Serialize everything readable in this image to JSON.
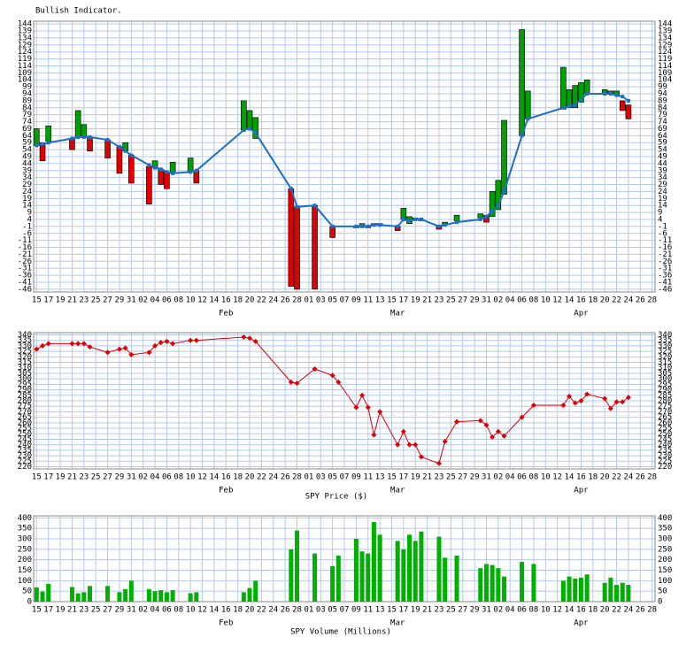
{
  "chart_data": [
    {
      "type": "indicator",
      "title": "Bullish Indicator.",
      "xlim": [
        -0.5,
        104.5
      ],
      "ylim": [
        -48,
        146
      ],
      "xticks": [
        {
          "value": 0,
          "label": "15"
        },
        {
          "value": 2,
          "label": "17"
        },
        {
          "value": 4,
          "label": "19"
        },
        {
          "value": 6,
          "label": "21"
        },
        {
          "value": 8,
          "label": "23"
        },
        {
          "value": 10,
          "label": "25"
        },
        {
          "value": 12,
          "label": "27"
        },
        {
          "value": 14,
          "label": "29"
        },
        {
          "value": 16,
          "label": "31"
        },
        {
          "value": 18,
          "label": "02"
        },
        {
          "value": 20,
          "label": "04"
        },
        {
          "value": 22,
          "label": "06"
        },
        {
          "value": 24,
          "label": "08"
        },
        {
          "value": 26,
          "label": "10"
        },
        {
          "value": 28,
          "label": "12"
        },
        {
          "value": 30,
          "label": "14"
        },
        {
          "value": 32,
          "label": "16"
        },
        {
          "value": 34,
          "label": "18"
        },
        {
          "value": 36,
          "label": "20"
        },
        {
          "value": 38,
          "label": "22"
        },
        {
          "value": 40,
          "label": "24"
        },
        {
          "value": 42,
          "label": "26"
        },
        {
          "value": 44,
          "label": "28"
        },
        {
          "value": 46,
          "label": "01"
        },
        {
          "value": 48,
          "label": "03"
        },
        {
          "value": 50,
          "label": "05"
        },
        {
          "value": 52,
          "label": "07"
        },
        {
          "value": 54,
          "label": "09"
        },
        {
          "value": 56,
          "label": "11"
        },
        {
          "value": 58,
          "label": "13"
        },
        {
          "value": 60,
          "label": "15"
        },
        {
          "value": 62,
          "label": "17"
        },
        {
          "value": 64,
          "label": "19"
        },
        {
          "value": 66,
          "label": "21"
        },
        {
          "value": 68,
          "label": "23"
        },
        {
          "value": 70,
          "label": "25"
        },
        {
          "value": 72,
          "label": "27"
        },
        {
          "value": 74,
          "label": "29"
        },
        {
          "value": 76,
          "label": "31"
        },
        {
          "value": 78,
          "label": "02"
        },
        {
          "value": 80,
          "label": "04"
        },
        {
          "value": 82,
          "label": "06"
        },
        {
          "value": 84,
          "label": "08"
        },
        {
          "value": 86,
          "label": "10"
        },
        {
          "value": 88,
          "label": "12"
        },
        {
          "value": 90,
          "label": "14"
        },
        {
          "value": 92,
          "label": "16"
        },
        {
          "value": 94,
          "label": "18"
        },
        {
          "value": 96,
          "label": "20"
        },
        {
          "value": 98,
          "label": "22"
        },
        {
          "value": 100,
          "label": "24"
        },
        {
          "value": 102,
          "label": "26"
        },
        {
          "value": 104,
          "label": "28"
        }
      ],
      "month_labels": [
        {
          "value": 32,
          "label": "Feb"
        },
        {
          "value": 61,
          "label": "Mar"
        },
        {
          "value": 92,
          "label": "Apr"
        }
      ],
      "yticks": [
        -46,
        -41,
        -36,
        -31,
        -26,
        -21,
        -16,
        -11,
        -6,
        -1,
        4,
        9,
        14,
        19,
        24,
        29,
        34,
        39,
        44,
        49,
        54,
        59,
        64,
        69,
        74,
        79,
        84,
        89,
        94,
        99,
        104,
        109,
        114,
        119,
        124,
        129,
        134,
        139,
        144
      ],
      "grid": true,
      "up_color": "#00a000",
      "down_color": "#e00000",
      "line_color": "#1f6fc6",
      "x": [
        0,
        1,
        2,
        6,
        7,
        8,
        9,
        12,
        14,
        15,
        16,
        19,
        20,
        21,
        22,
        23,
        26,
        27,
        35,
        36,
        37,
        43,
        44,
        47,
        50,
        54,
        55,
        56,
        57,
        58,
        61,
        62,
        63,
        64,
        65,
        68,
        69,
        71,
        75,
        76,
        77,
        78,
        79,
        82,
        83,
        89,
        90,
        91,
        92,
        93,
        96,
        97,
        98,
        99,
        100
      ],
      "start": [
        57,
        59,
        60,
        62,
        63,
        63,
        63,
        61,
        56,
        53,
        50,
        42,
        41,
        40,
        38,
        37,
        38,
        39,
        68,
        69,
        62,
        26,
        13,
        14,
        -1,
        -1,
        -1,
        -1,
        0,
        0,
        -1,
        4,
        1,
        4,
        4,
        0,
        0,
        3,
        5,
        7,
        6,
        11,
        22,
        64,
        76,
        83,
        84,
        84,
        88,
        94,
        94,
        94,
        93,
        89,
        86
      ],
      "end": [
        69,
        46,
        71,
        54,
        82,
        72,
        53,
        48,
        37,
        59,
        30,
        15,
        46,
        29,
        26,
        45,
        48,
        30,
        89,
        82,
        77,
        -44,
        -46,
        -46,
        -9,
        -2,
        1,
        -2,
        1,
        1,
        -4,
        12,
        6,
        5,
        3,
        -3,
        2,
        7,
        8,
        2,
        24,
        32,
        75,
        140,
        96,
        113,
        97,
        100,
        102,
        104,
        97,
        96,
        96,
        82,
        76
      ],
      "line_values": [
        57,
        58,
        59,
        62,
        63,
        63,
        63,
        61,
        56,
        53,
        50,
        43,
        41,
        40,
        38,
        37,
        38,
        39,
        68,
        69,
        66,
        26,
        13,
        14,
        -1,
        -1,
        -1,
        -1,
        0,
        0,
        -1,
        4,
        3,
        4,
        4,
        -1,
        0,
        2,
        4,
        6,
        10,
        14,
        24,
        64,
        76,
        84,
        85,
        86,
        90,
        94,
        94,
        94,
        93,
        92,
        89
      ]
    },
    {
      "type": "line",
      "title": "SPY Price ($)",
      "xlim": [
        -0.5,
        104.5
      ],
      "ylim": [
        218,
        342
      ],
      "xticks": [
        {
          "value": 0,
          "label": "15"
        },
        {
          "value": 2,
          "label": "17"
        },
        {
          "value": 4,
          "label": "19"
        },
        {
          "value": 6,
          "label": "21"
        },
        {
          "value": 8,
          "label": "23"
        },
        {
          "value": 10,
          "label": "25"
        },
        {
          "value": 12,
          "label": "27"
        },
        {
          "value": 14,
          "label": "29"
        },
        {
          "value": 16,
          "label": "31"
        },
        {
          "value": 18,
          "label": "02"
        },
        {
          "value": 20,
          "label": "04"
        },
        {
          "value": 22,
          "label": "06"
        },
        {
          "value": 24,
          "label": "08"
        },
        {
          "value": 26,
          "label": "10"
        },
        {
          "value": 28,
          "label": "12"
        },
        {
          "value": 30,
          "label": "14"
        },
        {
          "value": 32,
          "label": "16"
        },
        {
          "value": 34,
          "label": "18"
        },
        {
          "value": 36,
          "label": "20"
        },
        {
          "value": 38,
          "label": "22"
        },
        {
          "value": 40,
          "label": "24"
        },
        {
          "value": 42,
          "label": "26"
        },
        {
          "value": 44,
          "label": "28"
        },
        {
          "value": 46,
          "label": "01"
        },
        {
          "value": 48,
          "label": "03"
        },
        {
          "value": 50,
          "label": "05"
        },
        {
          "value": 52,
          "label": "07"
        },
        {
          "value": 54,
          "label": "09"
        },
        {
          "value": 56,
          "label": "11"
        },
        {
          "value": 58,
          "label": "13"
        },
        {
          "value": 60,
          "label": "15"
        },
        {
          "value": 62,
          "label": "17"
        },
        {
          "value": 64,
          "label": "19"
        },
        {
          "value": 66,
          "label": "21"
        },
        {
          "value": 68,
          "label": "23"
        },
        {
          "value": 70,
          "label": "25"
        },
        {
          "value": 72,
          "label": "27"
        },
        {
          "value": 74,
          "label": "29"
        },
        {
          "value": 76,
          "label": "31"
        },
        {
          "value": 78,
          "label": "02"
        },
        {
          "value": 80,
          "label": "04"
        },
        {
          "value": 82,
          "label": "06"
        },
        {
          "value": 84,
          "label": "08"
        },
        {
          "value": 86,
          "label": "10"
        },
        {
          "value": 88,
          "label": "12"
        },
        {
          "value": 90,
          "label": "14"
        },
        {
          "value": 92,
          "label": "16"
        },
        {
          "value": 94,
          "label": "18"
        },
        {
          "value": 96,
          "label": "20"
        },
        {
          "value": 98,
          "label": "22"
        },
        {
          "value": 100,
          "label": "24"
        },
        {
          "value": 102,
          "label": "26"
        },
        {
          "value": 104,
          "label": "28"
        }
      ],
      "month_labels": [
        {
          "value": 32,
          "label": "Feb"
        },
        {
          "value": 61,
          "label": "Mar"
        },
        {
          "value": 92,
          "label": "Apr"
        }
      ],
      "yticks": [
        220,
        225,
        230,
        235,
        240,
        245,
        250,
        255,
        260,
        265,
        270,
        275,
        280,
        285,
        290,
        295,
        300,
        305,
        310,
        315,
        320,
        325,
        330,
        335,
        340
      ],
      "grid": true,
      "color": "#e00000",
      "x": [
        0,
        1,
        2,
        6,
        7,
        8,
        9,
        12,
        14,
        15,
        16,
        19,
        20,
        21,
        22,
        23,
        26,
        27,
        35,
        36,
        37,
        43,
        44,
        47,
        50,
        51,
        54,
        55,
        56,
        57,
        58,
        61,
        62,
        63,
        64,
        65,
        68,
        69,
        71,
        75,
        76,
        77,
        78,
        79,
        82,
        84,
        89,
        90,
        91,
        92,
        93,
        96,
        97,
        98,
        99,
        100
      ],
      "values": [
        327,
        330,
        332,
        332,
        332,
        332,
        329,
        324,
        327,
        328,
        322,
        324,
        330,
        333,
        334,
        332,
        335,
        335,
        338,
        337,
        334,
        297,
        296,
        309,
        303,
        297,
        274,
        285,
        274,
        249,
        270,
        240,
        252,
        240,
        240,
        229,
        223,
        243,
        261,
        262,
        258,
        247,
        252,
        248,
        265,
        276,
        276,
        284,
        278,
        280,
        286,
        282,
        273,
        279,
        279,
        283
      ]
    },
    {
      "type": "bar",
      "title": "SPY Volume (Millions)",
      "xlim": [
        -0.5,
        104.5
      ],
      "ylim": [
        0,
        410
      ],
      "xticks": [
        {
          "value": 0,
          "label": "15"
        },
        {
          "value": 2,
          "label": "17"
        },
        {
          "value": 4,
          "label": "19"
        },
        {
          "value": 6,
          "label": "21"
        },
        {
          "value": 8,
          "label": "23"
        },
        {
          "value": 10,
          "label": "25"
        },
        {
          "value": 12,
          "label": "27"
        },
        {
          "value": 14,
          "label": "29"
        },
        {
          "value": 16,
          "label": "31"
        },
        {
          "value": 18,
          "label": "02"
        },
        {
          "value": 20,
          "label": "04"
        },
        {
          "value": 22,
          "label": "06"
        },
        {
          "value": 24,
          "label": "08"
        },
        {
          "value": 26,
          "label": "10"
        },
        {
          "value": 28,
          "label": "12"
        },
        {
          "value": 30,
          "label": "14"
        },
        {
          "value": 32,
          "label": "16"
        },
        {
          "value": 34,
          "label": "18"
        },
        {
          "value": 36,
          "label": "20"
        },
        {
          "value": 38,
          "label": "22"
        },
        {
          "value": 40,
          "label": "24"
        },
        {
          "value": 42,
          "label": "26"
        },
        {
          "value": 44,
          "label": "28"
        },
        {
          "value": 46,
          "label": "01"
        },
        {
          "value": 48,
          "label": "03"
        },
        {
          "value": 50,
          "label": "05"
        },
        {
          "value": 52,
          "label": "07"
        },
        {
          "value": 54,
          "label": "09"
        },
        {
          "value": 56,
          "label": "11"
        },
        {
          "value": 58,
          "label": "13"
        },
        {
          "value": 60,
          "label": "15"
        },
        {
          "value": 62,
          "label": "17"
        },
        {
          "value": 64,
          "label": "19"
        },
        {
          "value": 66,
          "label": "21"
        },
        {
          "value": 68,
          "label": "23"
        },
        {
          "value": 70,
          "label": "25"
        },
        {
          "value": 72,
          "label": "27"
        },
        {
          "value": 74,
          "label": "29"
        },
        {
          "value": 76,
          "label": "31"
        },
        {
          "value": 78,
          "label": "02"
        },
        {
          "value": 80,
          "label": "04"
        },
        {
          "value": 82,
          "label": "06"
        },
        {
          "value": 84,
          "label": "08"
        },
        {
          "value": 86,
          "label": "10"
        },
        {
          "value": 88,
          "label": "12"
        },
        {
          "value": 90,
          "label": "14"
        },
        {
          "value": 92,
          "label": "16"
        },
        {
          "value": 94,
          "label": "18"
        },
        {
          "value": 96,
          "label": "20"
        },
        {
          "value": 98,
          "label": "22"
        },
        {
          "value": 100,
          "label": "24"
        },
        {
          "value": 102,
          "label": "26"
        },
        {
          "value": 104,
          "label": "28"
        }
      ],
      "month_labels": [
        {
          "value": 32,
          "label": "Feb"
        },
        {
          "value": 61,
          "label": "Mar"
        },
        {
          "value": 92,
          "label": "Apr"
        }
      ],
      "yticks": [
        0,
        50,
        100,
        150,
        200,
        250,
        300,
        350,
        400
      ],
      "grid": true,
      "color": "#00b000",
      "x": [
        0,
        1,
        2,
        6,
        7,
        8,
        9,
        12,
        14,
        15,
        16,
        19,
        20,
        21,
        22,
        23,
        26,
        27,
        35,
        36,
        37,
        43,
        44,
        47,
        50,
        51,
        54,
        55,
        56,
        57,
        58,
        61,
        62,
        63,
        64,
        65,
        68,
        69,
        71,
        75,
        76,
        77,
        78,
        79,
        82,
        84,
        89,
        90,
        91,
        92,
        93,
        96,
        97,
        98,
        99,
        100
      ],
      "values": [
        68,
        48,
        85,
        70,
        40,
        45,
        75,
        75,
        45,
        60,
        100,
        60,
        50,
        55,
        45,
        55,
        40,
        45,
        45,
        65,
        100,
        250,
        340,
        230,
        170,
        220,
        300,
        240,
        230,
        380,
        320,
        290,
        250,
        320,
        290,
        335,
        310,
        210,
        220,
        160,
        180,
        175,
        160,
        120,
        190,
        180,
        100,
        120,
        110,
        115,
        130,
        90,
        115,
        80,
        90,
        80
      ]
    }
  ]
}
